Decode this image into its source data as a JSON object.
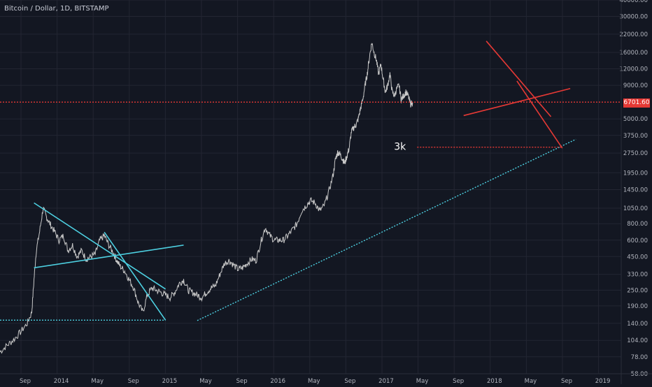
{
  "chart_data": {
    "type": "line",
    "title": "Bitcoin / Dollar, 1D, BITSTAMP",
    "y_scale": "log",
    "ylim": [
      58,
      40000
    ],
    "y_ticks": [
      "40000.00",
      "30000.00",
      "22000.00",
      "16000.00",
      "12000.00",
      "9000.00",
      "5000.00",
      "3750.00",
      "2750.00",
      "1950.00",
      "1450.00",
      "1050.00",
      "800.00",
      "600.00",
      "450.00",
      "330.00",
      "250.00",
      "190.00",
      "140.00",
      "104.00",
      "78.00",
      "58.00"
    ],
    "x_ticks": [
      "Sep",
      "2014",
      "May",
      "Sep",
      "2015",
      "May",
      "Sep",
      "2016",
      "May",
      "Sep",
      "2017",
      "May",
      "Sep",
      "2018",
      "May",
      "Sep",
      "2019"
    ],
    "current_price_label": "6701.60",
    "annotation": "3k",
    "colors": {
      "background": "#131722",
      "grid": "#232632",
      "price": "#c8c8c8",
      "cyan": "#4dd0e1",
      "red": "#e53935",
      "text": "#b2b5be"
    },
    "series": [
      {
        "x": [
          0,
          0.6,
          1.2,
          1.8,
          2.4,
          2.8,
          3.0,
          3.2,
          3.5,
          3.8,
          4.1,
          4.4,
          4.8,
          5.2,
          5.6,
          6.0,
          6.4,
          6.8,
          7.2,
          7.6,
          8.0,
          8.4,
          8.8,
          9.2,
          9.6,
          10.0,
          10.3,
          10.6,
          11.0,
          11.4,
          11.8,
          12.2,
          12.6,
          13.0,
          13.4,
          13.8,
          14.2,
          14.6,
          15.0,
          15.4,
          15.8,
          16.2,
          16.6,
          17.0,
          17.4,
          17.8,
          18.2,
          18.6,
          19.0,
          19.4,
          19.8,
          20.2,
          20.6,
          21.0,
          21.4,
          21.8,
          22.2,
          22.6,
          23.0,
          23.4,
          23.8,
          24.2,
          24.6,
          25.0,
          25.4,
          25.8,
          26.2,
          26.6,
          27.0,
          27.4,
          27.8,
          28.2,
          28.6,
          29.0,
          29.4,
          29.6,
          29.8,
          30.0,
          30.2,
          30.4,
          30.6,
          30.8,
          31.0,
          31.2,
          31.4,
          31.6,
          31.8,
          32.0,
          32.2,
          32.4,
          32.6,
          32.8,
          33.0,
          33.2,
          33.4,
          33.6,
          33.8,
          34.0,
          34.2,
          34.4,
          34.6,
          34.8,
          35.0,
          35.2,
          35.4,
          35.6,
          35.8,
          36.0,
          36.2,
          36.4
        ],
        "y": [
          85,
          95,
          105,
          120,
          140,
          170,
          300,
          500,
          700,
          1050,
          900,
          800,
          700,
          600,
          650,
          500,
          550,
          450,
          500,
          430,
          450,
          470,
          600,
          650,
          550,
          480,
          420,
          380,
          350,
          300,
          260,
          200,
          170,
          230,
          260,
          250,
          240,
          230,
          220,
          240,
          280,
          300,
          250,
          240,
          230,
          220,
          240,
          260,
          270,
          330,
          400,
          420,
          390,
          360,
          370,
          400,
          430,
          420,
          580,
          750,
          650,
          600,
          600,
          600,
          650,
          720,
          800,
          1000,
          1100,
          1200,
          1150,
          1000,
          1100,
          1400,
          1900,
          2500,
          2800,
          2700,
          2500,
          2300,
          2600,
          3000,
          4000,
          4300,
          4500,
          5000,
          6000,
          7000,
          9000,
          11000,
          15000,
          19000,
          16000,
          14000,
          11000,
          13000,
          10000,
          8000,
          9000,
          11000,
          8000,
          7500,
          8500,
          9000,
          7000,
          7500,
          8000,
          7500,
          6500,
          6700
        ]
      }
    ],
    "trendlines": [
      {
        "color": "cyan",
        "style": "solid",
        "from": [
          3.0,
          1150
        ],
        "to": [
          14.6,
          255
        ]
      },
      {
        "color": "cyan",
        "style": "solid",
        "from": [
          3.0,
          370
        ],
        "to": [
          16.2,
          550
        ]
      },
      {
        "color": "cyan",
        "style": "solid",
        "from": [
          9.2,
          690
        ],
        "to": [
          14.6,
          148
        ]
      },
      {
        "color": "cyan",
        "style": "dotted",
        "from": [
          0.0,
          148
        ],
        "to": [
          14.6,
          148
        ]
      },
      {
        "color": "cyan",
        "style": "dotted",
        "from": [
          17.4,
          147
        ],
        "to": [
          50.8,
          3500
        ]
      },
      {
        "color": "red",
        "style": "solid",
        "from": [
          42.9,
          19500
        ],
        "to": [
          48.6,
          5200
        ]
      },
      {
        "color": "red",
        "style": "solid",
        "from": [
          40.9,
          5300
        ],
        "to": [
          50.3,
          8500
        ]
      },
      {
        "color": "red",
        "style": "solid",
        "from": [
          45.6,
          9700
        ],
        "to": [
          49.6,
          3000
        ]
      },
      {
        "color": "red",
        "style": "dotted",
        "from": [
          36.8,
          3050
        ],
        "to": [
          49.6,
          3050
        ]
      },
      {
        "color": "red",
        "style": "dotted",
        "from": [
          0,
          6701.6
        ],
        "to": [
          54.8,
          6701.6
        ]
      }
    ],
    "x_unit": "months since 2013-08",
    "x_range": [
      0,
      54.8
    ]
  }
}
